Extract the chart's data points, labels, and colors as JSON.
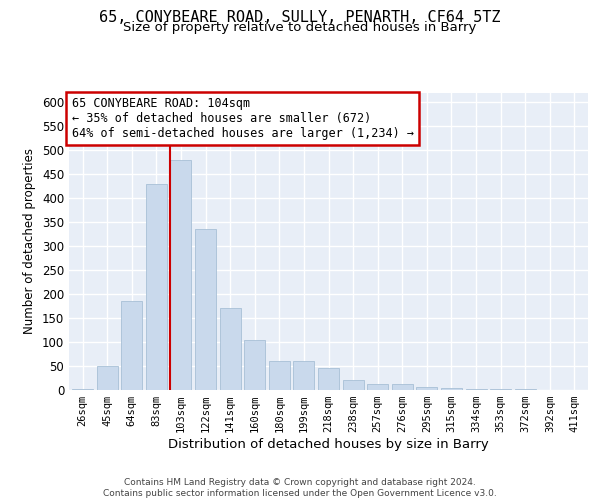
{
  "title1": "65, CONYBEARE ROAD, SULLY, PENARTH, CF64 5TZ",
  "title2": "Size of property relative to detached houses in Barry",
  "xlabel": "Distribution of detached houses by size in Barry",
  "ylabel": "Number of detached properties",
  "categories": [
    "26sqm",
    "45sqm",
    "64sqm",
    "83sqm",
    "103sqm",
    "122sqm",
    "141sqm",
    "160sqm",
    "180sqm",
    "199sqm",
    "218sqm",
    "238sqm",
    "257sqm",
    "276sqm",
    "295sqm",
    "315sqm",
    "334sqm",
    "353sqm",
    "372sqm",
    "392sqm",
    "411sqm"
  ],
  "values": [
    3,
    50,
    185,
    430,
    480,
    335,
    170,
    105,
    60,
    60,
    45,
    20,
    12,
    12,
    7,
    5,
    3,
    2,
    2,
    1,
    1
  ],
  "bar_color": "#c9d9ec",
  "bar_edge_color": "#a8c0d6",
  "vline_color": "#cc0000",
  "annotation_line1": "65 CONYBEARE ROAD: 104sqm",
  "annotation_line2": "← 35% of detached houses are smaller (672)",
  "annotation_line3": "64% of semi-detached houses are larger (1,234) →",
  "annotation_box_edge_color": "#cc0000",
  "ylim": [
    0,
    620
  ],
  "yticks": [
    0,
    50,
    100,
    150,
    200,
    250,
    300,
    350,
    400,
    450,
    500,
    550,
    600
  ],
  "highlight_bar_index": 4,
  "bg_color": "#e8eef7",
  "grid_color": "white",
  "footnote1": "Contains HM Land Registry data © Crown copyright and database right 2024.",
  "footnote2": "Contains public sector information licensed under the Open Government Licence v3.0."
}
